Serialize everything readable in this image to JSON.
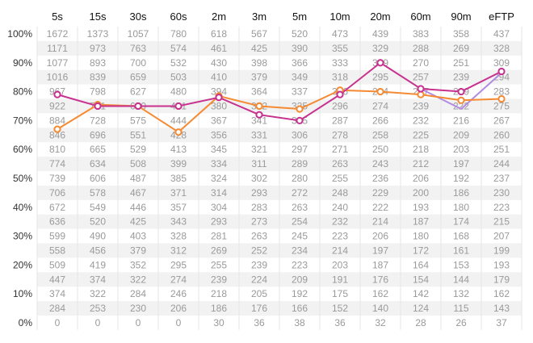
{
  "chart_data": {
    "type": "table",
    "title": "",
    "columns": [
      "5s",
      "15s",
      "30s",
      "60s",
      "2m",
      "3m",
      "5m",
      "10m",
      "20m",
      "60m",
      "90m",
      "eFTP"
    ],
    "y_ticks": [
      "100%",
      "90%",
      "80%",
      "70%",
      "60%",
      "50%",
      "40%",
      "30%",
      "20%",
      "10%",
      "0%"
    ],
    "ylim": [
      0,
      100
    ],
    "table": [
      [
        1672,
        1373,
        1057,
        780,
        618,
        567,
        520,
        473,
        439,
        383,
        358,
        437
      ],
      [
        1171,
        973,
        763,
        574,
        461,
        425,
        390,
        355,
        329,
        288,
        269,
        328
      ],
      [
        1077,
        893,
        700,
        532,
        430,
        398,
        366,
        333,
        309,
        270,
        251,
        309
      ],
      [
        1016,
        839,
        659,
        503,
        410,
        379,
        349,
        318,
        295,
        257,
        239,
        294
      ],
      [
        967,
        798,
        627,
        480,
        394,
        364,
        337,
        306,
        284,
        247,
        229,
        283
      ],
      [
        922,
        761,
        600,
        461,
        380,
        352,
        325,
        296,
        274,
        239,
        222,
        275
      ],
      [
        884,
        728,
        575,
        444,
        367,
        341,
        315,
        287,
        266,
        232,
        216,
        267
      ],
      [
        846,
        696,
        551,
        428,
        356,
        331,
        306,
        278,
        258,
        225,
        209,
        260
      ],
      [
        810,
        665,
        529,
        413,
        345,
        321,
        297,
        271,
        250,
        218,
        203,
        251
      ],
      [
        774,
        634,
        508,
        399,
        334,
        311,
        289,
        263,
        243,
        212,
        197,
        244
      ],
      [
        739,
        606,
        487,
        385,
        324,
        302,
        280,
        255,
        236,
        206,
        192,
        237
      ],
      [
        706,
        578,
        467,
        371,
        314,
        293,
        272,
        248,
        229,
        200,
        186,
        230
      ],
      [
        672,
        549,
        446,
        357,
        304,
        283,
        263,
        240,
        222,
        193,
        180,
        223
      ],
      [
        636,
        520,
        425,
        343,
        293,
        273,
        254,
        232,
        214,
        187,
        174,
        215
      ],
      [
        599,
        490,
        403,
        328,
        281,
        263,
        245,
        223,
        206,
        180,
        168,
        207
      ],
      [
        558,
        456,
        379,
        312,
        269,
        252,
        234,
        214,
        197,
        172,
        161,
        199
      ],
      [
        509,
        419,
        352,
        295,
        255,
        239,
        223,
        203,
        187,
        164,
        153,
        193
      ],
      [
        447,
        374,
        322,
        274,
        239,
        224,
        209,
        191,
        176,
        154,
        144,
        179
      ],
      [
        374,
        322,
        284,
        246,
        218,
        205,
        192,
        175,
        162,
        142,
        132,
        162
      ],
      [
        284,
        253,
        230,
        206,
        186,
        176,
        166,
        152,
        140,
        124,
        115,
        143
      ],
      [
        0,
        0,
        0,
        0,
        30,
        36,
        38,
        36,
        32,
        28,
        26,
        37
      ]
    ],
    "series": [
      {
        "name": "magenta",
        "color": "#c8318f",
        "values": [
          79,
          75,
          75,
          75,
          78,
          72,
          70,
          79,
          90,
          81,
          80,
          87
        ]
      },
      {
        "name": "orange",
        "color": "#f58a32",
        "values": [
          67,
          75.5,
          75,
          66,
          78.5,
          75,
          74,
          80.5,
          80,
          79,
          77,
          77.5
        ]
      },
      {
        "name": "lavender",
        "color": "#b28be0",
        "values": [
          null,
          null,
          null,
          null,
          null,
          null,
          null,
          null,
          null,
          null,
          74,
          86.5
        ]
      }
    ]
  }
}
